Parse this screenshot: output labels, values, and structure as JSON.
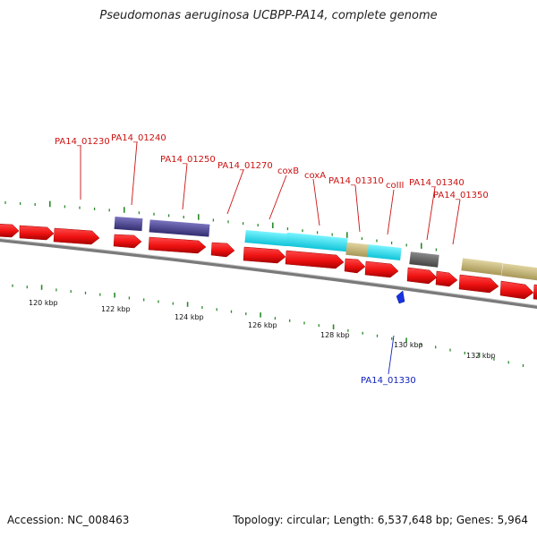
{
  "title": "Pseudomonas aeruginosa UCBPP-PA14, complete genome",
  "footer": {
    "accession": "Accession: NC_008463",
    "genome_info": "Topology: circular; Length: 6,537,648 bp; Genes: 5,964"
  },
  "colors": {
    "cds": "#ee1111",
    "cds_dark": "#b00000",
    "backbone": "#8a8a8a",
    "tick": "#2a8a2a",
    "label_red": "#cc1111",
    "label_blue": "#1122bb",
    "feature_navy": "#4a4490",
    "feature_cyan": "#2ee0f0",
    "feature_khaki": "#c8b878",
    "feature_grey": "#666666"
  },
  "scale_labels": [
    "120 kbp",
    "122 kbp",
    "124 kbp",
    "126 kbp",
    "128 kbp",
    "130 kbp",
    "132 kbp"
  ],
  "gene_labels": [
    {
      "text": "PA14_01230",
      "color": "red"
    },
    {
      "text": "PA14_01240",
      "color": "red"
    },
    {
      "text": "PA14_01250",
      "color": "red"
    },
    {
      "text": "PA14_01270",
      "color": "red"
    },
    {
      "text": "coxB",
      "color": "red"
    },
    {
      "text": "coxA",
      "color": "red"
    },
    {
      "text": "PA14_01310",
      "color": "red"
    },
    {
      "text": "coIII",
      "color": "red"
    },
    {
      "text": "PA14_01340",
      "color": "red"
    },
    {
      "text": "PA14_01350",
      "color": "red"
    },
    {
      "text": "PA14_01330",
      "color": "blue"
    }
  ]
}
